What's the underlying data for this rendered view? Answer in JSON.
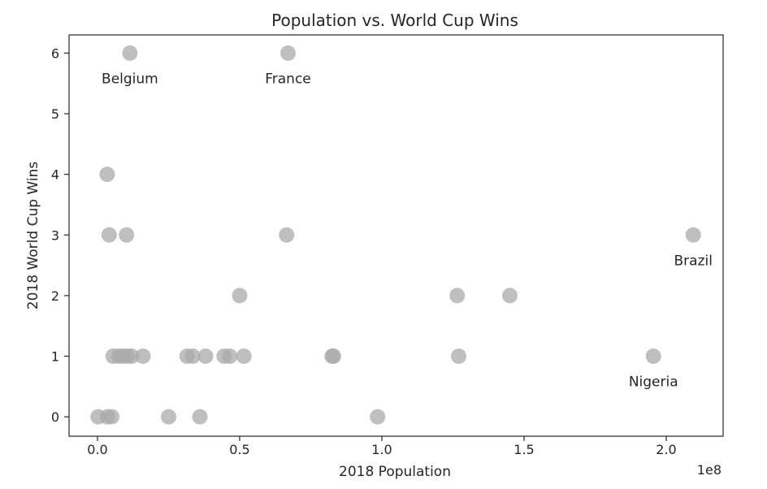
{
  "chart_data": {
    "type": "scatter",
    "title": "Population vs. World Cup Wins",
    "xlabel": "2018 Population",
    "ylabel": "2018 World Cup Wins",
    "x_offset_label": "1e8",
    "xlim": [
      -0.1,
      2.2
    ],
    "ylim": [
      -0.32,
      6.3
    ],
    "x_ticks": [
      0.0,
      0.5,
      1.0,
      1.5,
      2.0
    ],
    "x_tick_labels": [
      "0.0",
      "0.5",
      "1.0",
      "1.5",
      "2.0"
    ],
    "y_ticks": [
      0,
      1,
      2,
      3,
      4,
      5,
      6
    ],
    "y_tick_labels": [
      "0",
      "1",
      "2",
      "3",
      "4",
      "5",
      "6"
    ],
    "grid": false,
    "marker_color": "#a9a9a9",
    "series": [
      {
        "points": [
          {
            "x": 0.114,
            "y": 6
          },
          {
            "x": 0.67,
            "y": 6
          },
          {
            "x": 0.034,
            "y": 4
          },
          {
            "x": 0.041,
            "y": 3
          },
          {
            "x": 0.102,
            "y": 3
          },
          {
            "x": 0.665,
            "y": 3
          },
          {
            "x": 2.095,
            "y": 3
          },
          {
            "x": 0.5,
            "y": 2
          },
          {
            "x": 1.265,
            "y": 2
          },
          {
            "x": 1.45,
            "y": 2
          },
          {
            "x": 0.055,
            "y": 1
          },
          {
            "x": 0.075,
            "y": 1
          },
          {
            "x": 0.09,
            "y": 1
          },
          {
            "x": 0.105,
            "y": 1
          },
          {
            "x": 0.12,
            "y": 1
          },
          {
            "x": 0.16,
            "y": 1
          },
          {
            "x": 0.315,
            "y": 1
          },
          {
            "x": 0.335,
            "y": 1
          },
          {
            "x": 0.38,
            "y": 1
          },
          {
            "x": 0.445,
            "y": 1
          },
          {
            "x": 0.465,
            "y": 1
          },
          {
            "x": 0.515,
            "y": 1
          },
          {
            "x": 0.825,
            "y": 1
          },
          {
            "x": 0.83,
            "y": 1
          },
          {
            "x": 1.27,
            "y": 1
          },
          {
            "x": 1.955,
            "y": 1
          },
          {
            "x": 0.002,
            "y": 0
          },
          {
            "x": 0.035,
            "y": 0
          },
          {
            "x": 0.05,
            "y": 0
          },
          {
            "x": 0.25,
            "y": 0
          },
          {
            "x": 0.36,
            "y": 0
          },
          {
            "x": 0.985,
            "y": 0
          }
        ]
      }
    ],
    "annotations": [
      {
        "text": "Belgium",
        "x": 0.114,
        "y": 6
      },
      {
        "text": "France",
        "x": 0.67,
        "y": 6
      },
      {
        "text": "Brazil",
        "x": 2.095,
        "y": 3
      },
      {
        "text": "Nigeria",
        "x": 1.955,
        "y": 1
      }
    ]
  }
}
